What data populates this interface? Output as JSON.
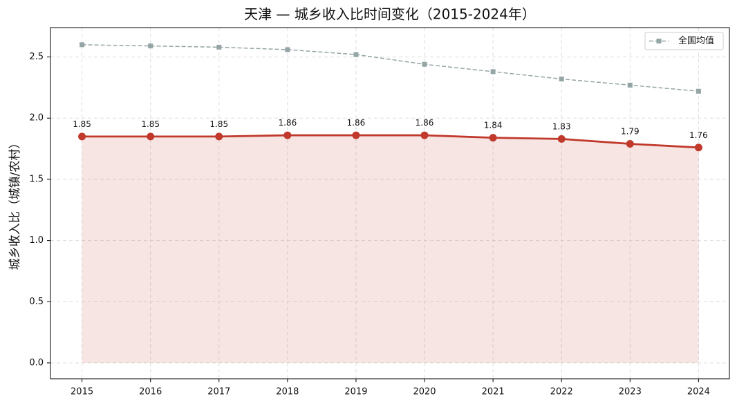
{
  "chart_data": {
    "type": "line",
    "title": "天津 — 城乡收入比时间变化（2015-2024年）",
    "y_label": "城乡收入比（城镇/农村）",
    "x": [
      2015,
      2016,
      2017,
      2018,
      2019,
      2020,
      2021,
      2022,
      2023,
      2024
    ],
    "series": [
      {
        "color": "#c0392b",
        "marker": "circle",
        "line_style": "solid",
        "fill_area": true,
        "data_labels": true,
        "values": [
          1.85,
          1.85,
          1.85,
          1.86,
          1.86,
          1.86,
          1.84,
          1.83,
          1.79,
          1.76
        ]
      },
      {
        "name": "全国均值",
        "color": "#95a5a6",
        "marker": "square",
        "line_style": "dashed",
        "fill_area": false,
        "data_labels": false,
        "values": [
          2.6,
          2.59,
          2.58,
          2.56,
          2.52,
          2.44,
          2.38,
          2.32,
          2.27,
          2.22
        ]
      }
    ],
    "xlim": [
      2014.54,
      2024.45
    ],
    "xticks": [
      2015,
      2016,
      2017,
      2018,
      2019,
      2020,
      2021,
      2022,
      2023,
      2024
    ],
    "ylim": [
      -0.13,
      2.74
    ],
    "yticks": [
      {
        "value": 0,
        "label": "0.0"
      },
      0.5,
      {
        "value": 1,
        "label": "1.0"
      },
      1.5,
      {
        "value": 2,
        "label": "2.0"
      },
      2.5
    ],
    "grid": true,
    "legend": "upper right"
  }
}
